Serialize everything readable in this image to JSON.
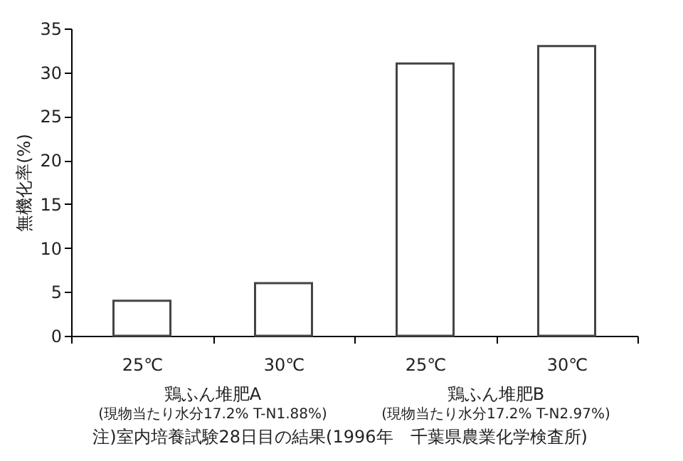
{
  "chart_data": {
    "type": "bar",
    "ylabel": "無機化率(%)",
    "categories": [
      "25℃",
      "30℃",
      "25℃",
      "30℃"
    ],
    "values": [
      4,
      6,
      31,
      33
    ],
    "color": "#ffffff",
    "ylim": [
      0,
      35
    ],
    "yticks": [
      0,
      5,
      10,
      15,
      20,
      25,
      30,
      35
    ],
    "grid": false,
    "annotations": [
      "鶏ふん堆肥A",
      "(現物当たり水分17.2% T-N1.88%)",
      "鶏ふん堆肥B",
      "(現物当たり水分17.2% T-N2.97%)",
      "注)室内培養試験28日目の結果(1996年　千葉県農業化学検査所)"
    ]
  }
}
